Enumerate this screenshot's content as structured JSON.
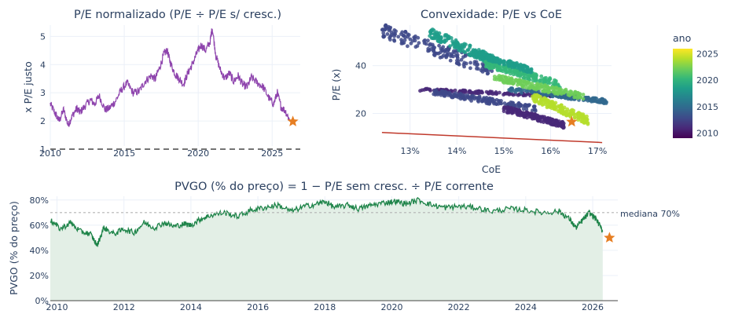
{
  "chart_data": [
    {
      "type": "line",
      "title": "P/E normalizado (P/E ÷ P/E s/ cresc.)",
      "xlabel": "",
      "ylabel": "x P/E justo",
      "xlim": [
        2010,
        2026.9
      ],
      "ylim": [
        1,
        5.4
      ],
      "x_ticks": [
        "2010",
        "2015",
        "2020",
        "2025"
      ],
      "y_ticks": [
        "1",
        "2",
        "3",
        "4",
        "5"
      ],
      "reference_line": {
        "y": 1,
        "style": "dashed",
        "color": "#222222"
      },
      "line_color": "#8e44ad",
      "series_points": [
        [
          2010.0,
          2.6
        ],
        [
          2010.3,
          2.3
        ],
        [
          2010.6,
          2.0
        ],
        [
          2010.9,
          2.4
        ],
        [
          2011.2,
          1.85
        ],
        [
          2011.5,
          2.2
        ],
        [
          2011.8,
          2.45
        ],
        [
          2012.0,
          2.3
        ],
        [
          2012.3,
          2.5
        ],
        [
          2012.7,
          2.75
        ],
        [
          2013.0,
          2.6
        ],
        [
          2013.3,
          2.9
        ],
        [
          2013.7,
          2.4
        ],
        [
          2014.0,
          2.45
        ],
        [
          2014.4,
          2.7
        ],
        [
          2014.8,
          3.1
        ],
        [
          2015.2,
          3.35
        ],
        [
          2015.6,
          3.0
        ],
        [
          2016.0,
          3.05
        ],
        [
          2016.4,
          3.4
        ],
        [
          2016.8,
          3.6
        ],
        [
          2017.1,
          3.5
        ],
        [
          2017.4,
          3.9
        ],
        [
          2017.7,
          4.4
        ],
        [
          2017.9,
          4.5
        ],
        [
          2018.1,
          4.1
        ],
        [
          2018.4,
          3.7
        ],
        [
          2018.7,
          3.5
        ],
        [
          2019.0,
          3.3
        ],
        [
          2019.3,
          3.7
        ],
        [
          2019.6,
          4.0
        ],
        [
          2019.9,
          4.4
        ],
        [
          2020.2,
          4.7
        ],
        [
          2020.5,
          4.5
        ],
        [
          2020.8,
          4.8
        ],
        [
          2020.95,
          5.3
        ],
        [
          2021.2,
          4.3
        ],
        [
          2021.5,
          3.8
        ],
        [
          2021.8,
          3.5
        ],
        [
          2022.1,
          3.7
        ],
        [
          2022.4,
          3.4
        ],
        [
          2022.7,
          3.6
        ],
        [
          2023.0,
          3.3
        ],
        [
          2023.3,
          3.2
        ],
        [
          2023.6,
          3.55
        ],
        [
          2024.0,
          3.35
        ],
        [
          2024.4,
          3.2
        ],
        [
          2024.8,
          2.8
        ],
        [
          2025.1,
          2.6
        ],
        [
          2025.35,
          3.0
        ],
        [
          2025.6,
          2.5
        ],
        [
          2025.9,
          2.35
        ],
        [
          2026.2,
          2.0
        ]
      ],
      "current_marker": {
        "x": 2026.4,
        "y": 1.98,
        "symbol": "star",
        "color": "#e67e22"
      }
    },
    {
      "type": "scatter",
      "title": "Convexidade: P/E vs CoE",
      "xlabel": "CoE",
      "ylabel": "P/E (x)",
      "xlim": [
        12.2,
        17.3
      ],
      "ylim": [
        7,
        57
      ],
      "x_ticks": [
        "13%",
        "14%",
        "15%",
        "16%",
        "17%"
      ],
      "y_ticks": [
        "20",
        "40"
      ],
      "colorbar": {
        "title": "ano",
        "min": 2009,
        "max": 2026,
        "ticks": [
          "2010",
          "2015",
          "2020",
          "2025"
        ],
        "colors": [
          "#440154",
          "#482878",
          "#3e4989",
          "#31688e",
          "#26828e",
          "#1f9e89",
          "#35b779",
          "#6ece58",
          "#b5de2b",
          "#fde725"
        ]
      },
      "clusters": [
        {
          "year": 2013,
          "x": [
            12.4,
            14.8
          ],
          "y": [
            38,
            55
          ]
        },
        {
          "year": 2018,
          "x": [
            13.4,
            14.8
          ],
          "y": [
            42,
            54
          ]
        },
        {
          "year": 2011,
          "x": [
            13.2,
            16.6
          ],
          "y": [
            27,
            30
          ]
        },
        {
          "year": 2012,
          "x": [
            13.5,
            15.7
          ],
          "y": [
            22,
            29
          ]
        },
        {
          "year": 2010,
          "x": [
            15.0,
            16.3
          ],
          "y": [
            15,
            22
          ]
        },
        {
          "year": 2015,
          "x": [
            15.1,
            17.2
          ],
          "y": [
            25,
            30
          ]
        },
        {
          "year": 2021,
          "x": [
            14.6,
            16.2
          ],
          "y": [
            32,
            41
          ]
        },
        {
          "year": 2023,
          "x": [
            14.8,
            16.7
          ],
          "y": [
            27,
            35
          ]
        },
        {
          "year": 2025,
          "x": [
            15.6,
            16.8
          ],
          "y": [
            17,
            27
          ]
        },
        {
          "year": 2019,
          "x": [
            14.4,
            15.6
          ],
          "y": [
            38,
            45
          ]
        }
      ],
      "fit_line": {
        "points": [
          [
            12.4,
            12.0
          ],
          [
            17.1,
            7.8
          ]
        ],
        "color": "#c0392b"
      },
      "current_marker": {
        "x": 16.45,
        "y": 16.5,
        "symbol": "star",
        "color": "#e67e22"
      }
    },
    {
      "type": "area",
      "title": "PVGO (% do preço) = 1 − P/E sem cresc. ÷ P/E corrente",
      "xlabel": "",
      "ylabel": "PVGO (% do preço)",
      "xlim": [
        2009.8,
        2026.75
      ],
      "ylim": [
        0,
        83
      ],
      "x_ticks": [
        "2010",
        "2012",
        "2014",
        "2016",
        "2018",
        "2020",
        "2022",
        "2024",
        "2026"
      ],
      "y_ticks": [
        "0%",
        "20%",
        "40%",
        "60%",
        "80%"
      ],
      "median": {
        "value": 70,
        "label": "mediana 70%"
      },
      "line_color": "#1e8449",
      "fill_color": "#e3efe6",
      "series_points": [
        [
          2009.8,
          64
        ],
        [
          2010.1,
          57
        ],
        [
          2010.4,
          62
        ],
        [
          2010.7,
          55
        ],
        [
          2011.0,
          53
        ],
        [
          2011.2,
          44
        ],
        [
          2011.4,
          58
        ],
        [
          2011.7,
          53
        ],
        [
          2012.0,
          57
        ],
        [
          2012.3,
          54
        ],
        [
          2012.6,
          62
        ],
        [
          2012.9,
          58
        ],
        [
          2013.2,
          62
        ],
        [
          2013.5,
          59
        ],
        [
          2013.8,
          61
        ],
        [
          2014.0,
          60
        ],
        [
          2014.3,
          65
        ],
        [
          2014.6,
          68
        ],
        [
          2015.0,
          70
        ],
        [
          2015.4,
          67
        ],
        [
          2015.8,
          72
        ],
        [
          2016.2,
          74
        ],
        [
          2016.6,
          76
        ],
        [
          2017.0,
          71
        ],
        [
          2017.4,
          75
        ],
        [
          2017.8,
          77
        ],
        [
          2018.0,
          79
        ],
        [
          2018.3,
          74
        ],
        [
          2018.7,
          76
        ],
        [
          2019.0,
          73
        ],
        [
          2019.4,
          76
        ],
        [
          2019.8,
          78
        ],
        [
          2020.1,
          79
        ],
        [
          2020.4,
          77
        ],
        [
          2020.8,
          80
        ],
        [
          2021.2,
          76
        ],
        [
          2021.6,
          74
        ],
        [
          2022.0,
          75
        ],
        [
          2022.5,
          74
        ],
        [
          2023.0,
          71
        ],
        [
          2023.5,
          73
        ],
        [
          2024.0,
          72
        ],
        [
          2024.5,
          70
        ],
        [
          2025.0,
          71
        ],
        [
          2025.3,
          65
        ],
        [
          2025.5,
          58
        ],
        [
          2025.7,
          64
        ],
        [
          2025.9,
          70
        ],
        [
          2026.1,
          65
        ],
        [
          2026.3,
          55
        ]
      ],
      "current_marker": {
        "x": 2026.5,
        "y": 50,
        "symbol": "star",
        "color": "#e67e22"
      }
    }
  ]
}
